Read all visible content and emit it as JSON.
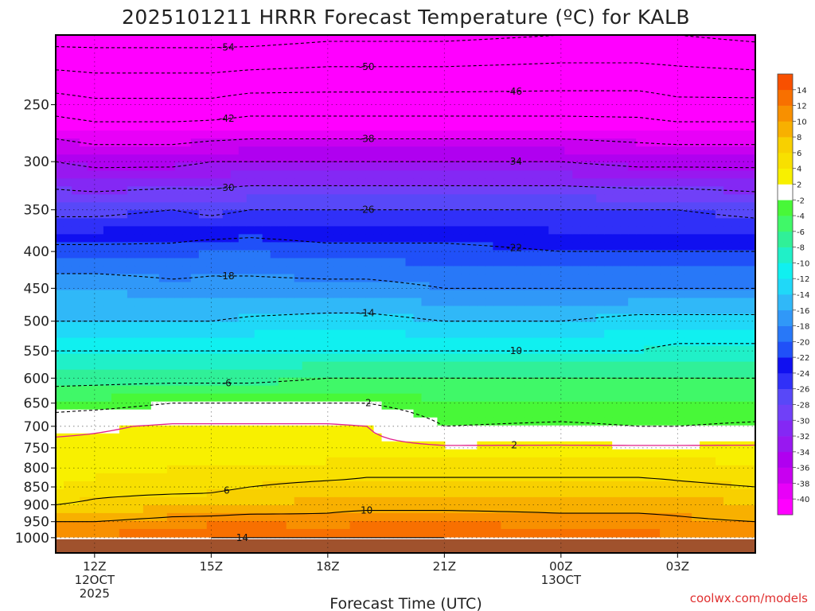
{
  "chart_data": {
    "type": "heatmap",
    "title": "2025101211 HRRR Forecast Temperature (ºC) for KALB",
    "xlabel": "Forecast Time (UTC)",
    "ylabel": "",
    "credit": "coolwx.com/models",
    "x_ticks": [
      {
        "x": 0,
        "lines": [
          "12Z",
          "12OCT",
          "2025"
        ]
      },
      {
        "x": 3,
        "lines": [
          "15Z"
        ]
      },
      {
        "x": 6,
        "lines": [
          "18Z"
        ]
      },
      {
        "x": 9,
        "lines": [
          "21Z"
        ]
      },
      {
        "x": 12,
        "lines": [
          "00Z",
          "13OCT"
        ]
      },
      {
        "x": 15,
        "lines": [
          "03Z"
        ]
      }
    ],
    "xlim": [
      -1,
      17
    ],
    "y_scale": "log-pressure",
    "y_ticks": [
      250,
      300,
      350,
      400,
      450,
      500,
      550,
      600,
      650,
      700,
      750,
      800,
      850,
      900,
      950,
      1000
    ],
    "ylim": [
      1050,
      200
    ],
    "surface_pressure": 1005,
    "contour_levels": [
      -54,
      -50,
      -46,
      -42,
      -38,
      -34,
      -30,
      -26,
      -22,
      -18,
      -14,
      -10,
      -6,
      -2,
      2,
      6,
      10,
      14
    ],
    "colorbar": {
      "bounds": [
        -42,
        -40,
        -38,
        -36,
        -34,
        -32,
        -30,
        -28,
        -26,
        -24,
        -22,
        -20,
        -18,
        -16,
        -14,
        -12,
        -10,
        -8,
        -6,
        -4,
        -2,
        2,
        4,
        6,
        8,
        10,
        12,
        14,
        16
      ],
      "colors": [
        "#ff00ff",
        "#e800f8",
        "#c800f0",
        "#b000f0",
        "#9818f0",
        "#8428f4",
        "#7040f8",
        "#5848f8",
        "#3030f8",
        "#1010f0",
        "#2050f8",
        "#2878f8",
        "#3098f8",
        "#30b8f8",
        "#20d8f8",
        "#10f0f0",
        "#20f0c8",
        "#30f098",
        "#40f868",
        "#48f838",
        "#ffffff",
        "#f8f000",
        "#f8e000",
        "#f8d000",
        "#f8b000",
        "#f89000",
        "#f87000",
        "#f85000"
      ],
      "labels": [
        -40,
        -38,
        -36,
        -34,
        -32,
        -30,
        -28,
        -26,
        -24,
        -22,
        -20,
        -18,
        -16,
        -14,
        -12,
        -10,
        -8,
        -6,
        -4,
        -2,
        2,
        4,
        6,
        8,
        10,
        12,
        14
      ]
    },
    "profiles": {
      "pressure": [
        1000,
        950,
        900,
        850,
        800,
        750,
        700,
        650,
        600,
        550,
        500,
        450,
        400,
        350,
        300,
        250,
        200
      ],
      "x": [
        -1,
        0,
        2,
        3,
        4,
        6,
        7,
        9,
        12,
        14,
        15,
        17
      ],
      "temps": [
        [
          12,
          10,
          6,
          4,
          2.5,
          3,
          1,
          -4,
          -7,
          -10,
          -14,
          -16,
          -21,
          -27,
          -34,
          -44,
          -56
        ],
        [
          12.5,
          10,
          6.5,
          5,
          3,
          3,
          1.5,
          -3.5,
          -7,
          -10,
          -14,
          -16,
          -21,
          -27,
          -35,
          -45,
          -56
        ],
        [
          13,
          11,
          7.5,
          5,
          4,
          3.5,
          2.5,
          -2,
          -7,
          -10,
          -14,
          -17,
          -21,
          -26,
          -35,
          -45,
          -56
        ],
        [
          14,
          11.5,
          7,
          5.5,
          4,
          3,
          2.5,
          -2,
          -7,
          -10,
          -14,
          -17,
          -20,
          -27,
          -34,
          -45,
          -56
        ],
        [
          14,
          12,
          7.5,
          6,
          4,
          3.5,
          2.5,
          -2,
          -7,
          -10,
          -13.5,
          -17,
          -20,
          -26,
          -34,
          -44,
          -56
        ],
        [
          13.5,
          11,
          9,
          7,
          4,
          4,
          2.5,
          -2,
          -6,
          -10,
          -13,
          -17,
          -21,
          -26,
          -34,
          -44,
          -55
        ],
        [
          13.5,
          12,
          9,
          7,
          5,
          3,
          2,
          -2,
          -6,
          -10,
          -13,
          -17,
          -21,
          -26,
          -34,
          -44,
          -55
        ],
        [
          14,
          12,
          9,
          7,
          5,
          2.5,
          -2,
          -4,
          -6,
          -10,
          -14,
          -18,
          -21,
          -26,
          -34,
          -44,
          -55
        ],
        [
          13.5,
          11,
          9,
          7,
          5,
          2.5,
          -1.5,
          -4,
          -6,
          -10,
          -14,
          -18,
          -22,
          -26,
          -34,
          -44,
          -54
        ],
        [
          13,
          11,
          9,
          7,
          5,
          2.5,
          -2,
          -4,
          -6,
          -10,
          -13,
          -18,
          -22,
          -26,
          -35,
          -44,
          -54
        ],
        [
          12,
          10.5,
          9,
          6.5,
          5,
          2.5,
          -2,
          -4,
          -6,
          -9,
          -13,
          -18,
          -22,
          -26,
          -35,
          -45,
          -54
        ],
        [
          12,
          10,
          8,
          6,
          4.5,
          2.5,
          -1.5,
          -4,
          -6,
          -9,
          -13,
          -18,
          -22,
          -27,
          -35,
          -45,
          -55
        ]
      ]
    }
  }
}
